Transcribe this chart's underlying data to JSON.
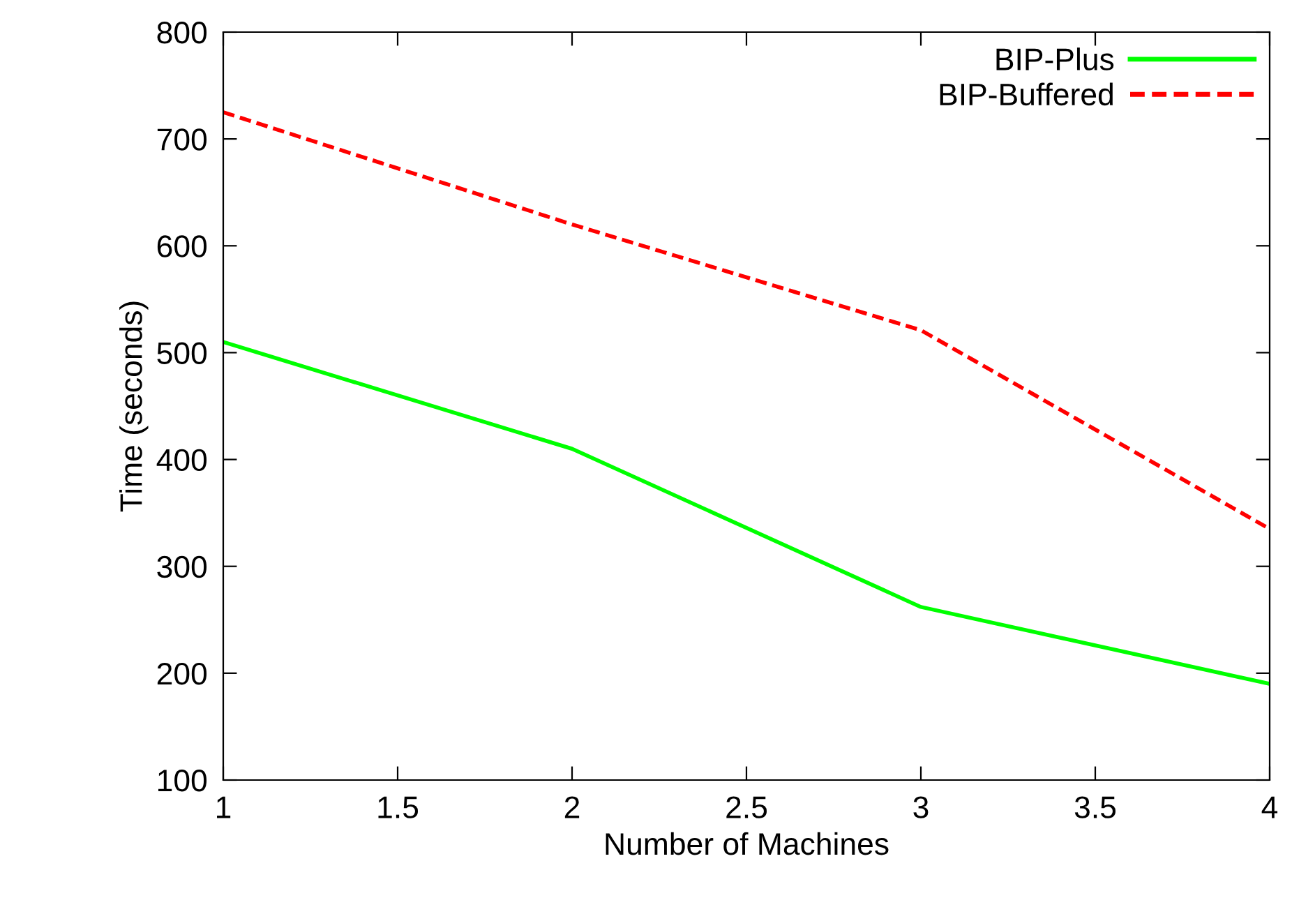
{
  "chart_data": {
    "type": "line",
    "xlabel": "Number of Machines",
    "ylabel": "Time (seconds)",
    "x": [
      1,
      2,
      3,
      4
    ],
    "series": [
      {
        "name": "BIP-Plus",
        "color": "#00ff00",
        "line_style": "solid",
        "values": [
          510,
          410,
          262,
          190
        ]
      },
      {
        "name": "BIP-Buffered",
        "color": "#ff0000",
        "line_style": "dashed",
        "values": [
          725,
          620,
          521,
          335
        ]
      }
    ],
    "xlim": [
      1,
      4
    ],
    "ylim": [
      100,
      800
    ],
    "xticks": [
      1,
      1.5,
      2,
      2.5,
      3,
      3.5,
      4
    ],
    "yticks": [
      100,
      200,
      300,
      400,
      500,
      600,
      700,
      800
    ],
    "grid": false,
    "legend": "top right",
    "marker": "none"
  }
}
